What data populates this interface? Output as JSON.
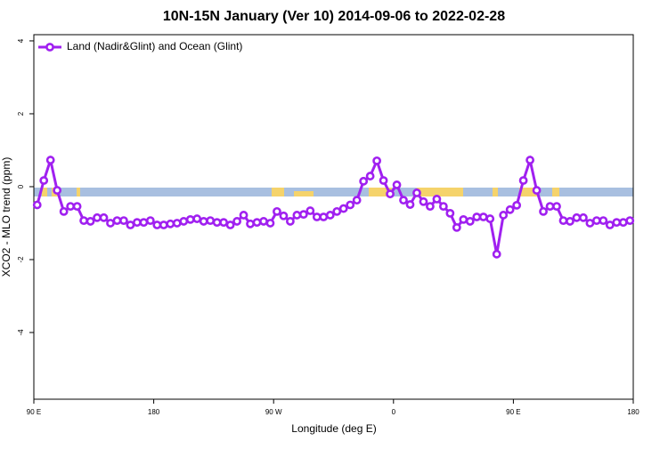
{
  "chart_data": {
    "type": "line",
    "title": "10N-15N January (Ver 10)   2014-09-06 to 2022-02-28",
    "x_label": "Longitude (deg E)",
    "y_label": "XCO2 - MLO trend (ppm)",
    "xlim": [
      90,
      540
    ],
    "xticks": [
      {
        "value": 90,
        "label": "90 E"
      },
      180,
      {
        "value": 270,
        "label": "90 W"
      },
      {
        "value": 360,
        "label": "0"
      },
      {
        "value": 450,
        "label": "90 E"
      },
      {
        "value": 540,
        "label": "180"
      }
    ],
    "ylim": [
      -5.83,
      4.17
    ],
    "yticks": [
      -4,
      -2,
      0,
      2,
      4
    ],
    "legend": "top-left",
    "series": [
      {
        "name": "Land (Nadir&Glint) and Ocean (Glint)",
        "color": "#a020f0",
        "x": [
          92.5,
          97.5,
          102.5,
          107.5,
          112.5,
          117.5,
          122.5,
          127.5,
          132.5,
          137.5,
          142.5,
          147.5,
          152.5,
          157.5,
          162.5,
          167.5,
          172.5,
          177.5,
          182.5,
          187.5,
          192.5,
          197.5,
          202.5,
          207.5,
          212.5,
          217.5,
          222.5,
          227.5,
          232.5,
          237.5,
          242.5,
          247.5,
          252.5,
          257.5,
          262.5,
          267.5,
          272.5,
          277.5,
          282.5,
          287.5,
          292.5,
          297.5,
          302.5,
          307.5,
          312.5,
          317.5,
          322.5,
          327.5,
          332.5,
          337.5,
          342.5,
          347.5,
          352.5,
          357.5,
          362.5,
          367.5,
          372.5,
          377.5,
          382.5,
          387.5,
          392.5,
          397.5,
          402.5,
          407.5,
          412.5,
          417.5,
          422.5,
          427.5,
          432.5,
          437.5,
          442.5,
          447.5,
          452.5,
          457.5,
          462.5,
          467.5,
          472.5,
          477.5,
          482.5,
          487.5,
          492.5,
          497.5,
          502.5,
          507.5,
          512.5,
          517.5,
          522.5,
          527.5,
          532.5,
          537.5
        ],
        "values": [
          -0.5,
          0.17,
          0.73,
          -0.1,
          -0.68,
          -0.54,
          -0.54,
          -0.93,
          -0.95,
          -0.85,
          -0.85,
          -1.0,
          -0.93,
          -0.93,
          -1.05,
          -0.98,
          -0.98,
          -0.93,
          -1.05,
          -1.05,
          -1.02,
          -1.0,
          -0.95,
          -0.9,
          -0.88,
          -0.95,
          -0.93,
          -0.98,
          -0.98,
          -1.05,
          -0.95,
          -0.78,
          -1.02,
          -0.98,
          -0.95,
          -1.0,
          -0.68,
          -0.8,
          -0.95,
          -0.78,
          -0.76,
          -0.66,
          -0.83,
          -0.83,
          -0.78,
          -0.68,
          -0.6,
          -0.5,
          -0.37,
          0.15,
          0.29,
          0.71,
          0.17,
          -0.2,
          0.05,
          -0.37,
          -0.49,
          -0.17,
          -0.41,
          -0.54,
          -0.34,
          -0.54,
          -0.73,
          -1.12,
          -0.9,
          -0.95,
          -0.83,
          -0.83,
          -0.88,
          -1.85,
          -0.78,
          -0.63,
          -0.51,
          0.17,
          0.73,
          -0.1,
          -0.68,
          -0.54,
          -0.54,
          -0.93,
          -0.95,
          -0.85,
          -0.85,
          -1.0,
          -0.93,
          -0.93,
          -1.05,
          -0.98,
          -0.98,
          -0.93
        ]
      }
    ]
  }
}
